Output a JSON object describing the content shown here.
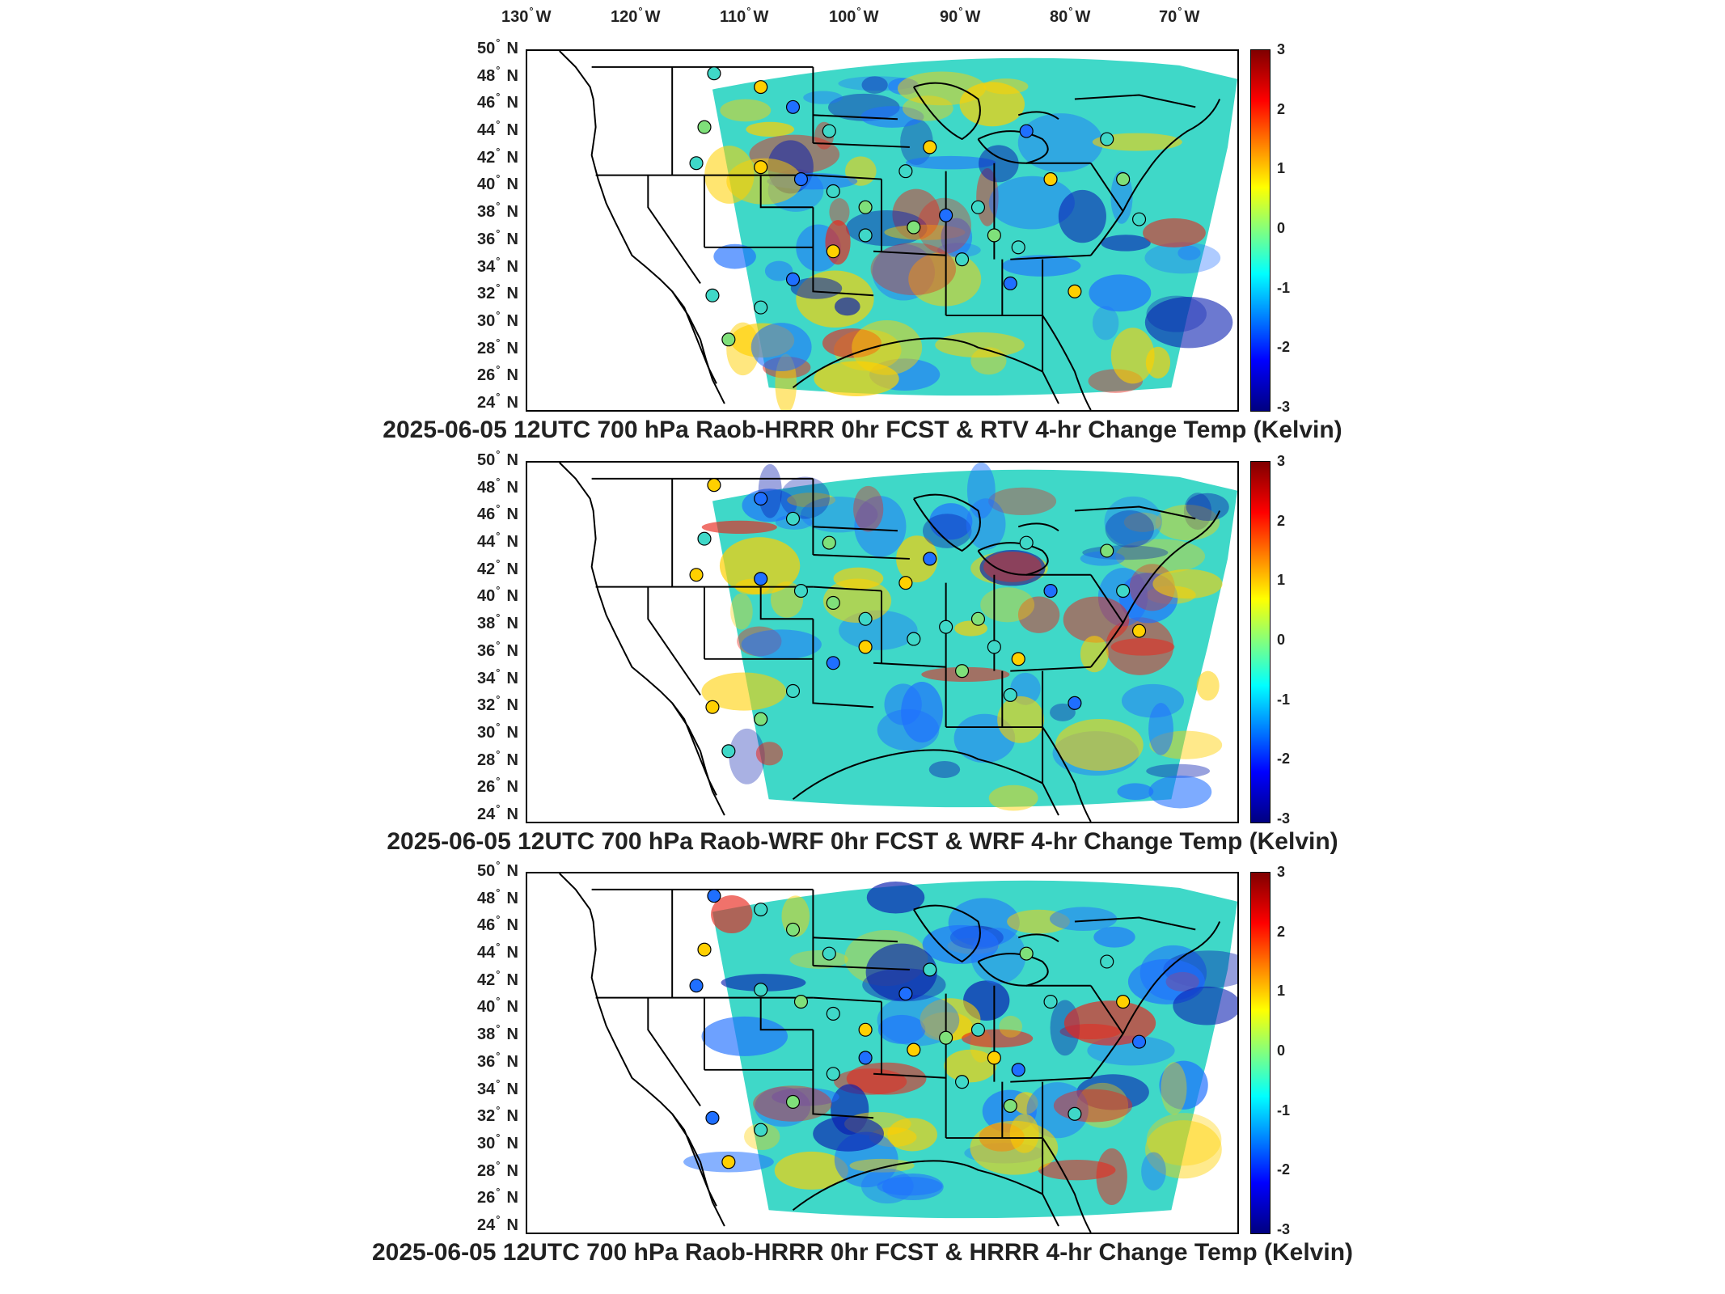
{
  "longitude_labels": [
    "130",
    "120",
    "110",
    "100",
    "90",
    "80",
    "70"
  ],
  "longitude_suffix": "W",
  "latitude_labels": [
    "50",
    "48",
    "46",
    "44",
    "42",
    "40",
    "38",
    "36",
    "34",
    "32",
    "30",
    "28",
    "26",
    "24"
  ],
  "latitude_suffix": "N",
  "degree_symbol": "°",
  "colorbar": {
    "ticks": [
      "3",
      "2",
      "1",
      "0",
      "-1",
      "-2",
      "-3"
    ],
    "range": [
      -3,
      3
    ],
    "colormap": "jet"
  },
  "panels": [
    {
      "title": "2025-06-05 12UTC 700 hPa Raob-HRRR 0hr FCST & RTV 4-hr Change Temp (Kelvin)"
    },
    {
      "title": "2025-06-05 12UTC 700 hPa Raob-WRF 0hr FCST & WRF 4-hr Change Temp (Kelvin)"
    },
    {
      "title": "2025-06-05 12UTC 700 hPa Raob-HRRR 0hr FCST & HRRR 4-hr Change Temp (Kelvin)"
    }
  ],
  "colors": {
    "background": "#ffffff",
    "field_base": "#3fd8c8",
    "warm": "#ffd000",
    "hot": "#e8261b",
    "cool": "#1f6fff",
    "cold": "#0a1fb0",
    "boundary": "#000000"
  }
}
